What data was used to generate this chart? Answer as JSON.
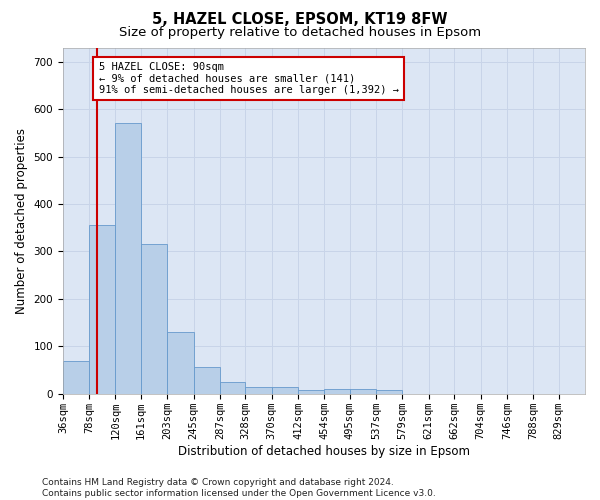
{
  "title1": "5, HAZEL CLOSE, EPSOM, KT19 8FW",
  "title2": "Size of property relative to detached houses in Epsom",
  "xlabel": "Distribution of detached houses by size in Epsom",
  "ylabel": "Number of detached properties",
  "bar_values": [
    70,
    355,
    570,
    315,
    130,
    57,
    25,
    14,
    14,
    8,
    10,
    10,
    8,
    0,
    0,
    0,
    0,
    0,
    0,
    0
  ],
  "bin_edges": [
    36,
    78,
    120,
    161,
    203,
    245,
    287,
    328,
    370,
    412,
    454,
    495,
    537,
    579,
    621,
    662,
    704,
    746,
    788,
    829,
    871
  ],
  "bar_color": "#b8cfe8",
  "bar_edgecolor": "#6699cc",
  "vline_x": 90,
  "vline_color": "#cc0000",
  "ylim": [
    0,
    730
  ],
  "yticks": [
    0,
    100,
    200,
    300,
    400,
    500,
    600,
    700
  ],
  "annotation_text": "5 HAZEL CLOSE: 90sqm\n← 9% of detached houses are smaller (141)\n91% of semi-detached houses are larger (1,392) →",
  "annotation_box_color": "#ffffff",
  "annotation_box_edgecolor": "#cc0000",
  "grid_color": "#c8d4e8",
  "bg_color": "#dce6f4",
  "footer": "Contains HM Land Registry data © Crown copyright and database right 2024.\nContains public sector information licensed under the Open Government Licence v3.0.",
  "title1_fontsize": 10.5,
  "title2_fontsize": 9.5,
  "xlabel_fontsize": 8.5,
  "ylabel_fontsize": 8.5,
  "tick_fontsize": 7.5,
  "annotation_fontsize": 7.5,
  "footer_fontsize": 6.5
}
